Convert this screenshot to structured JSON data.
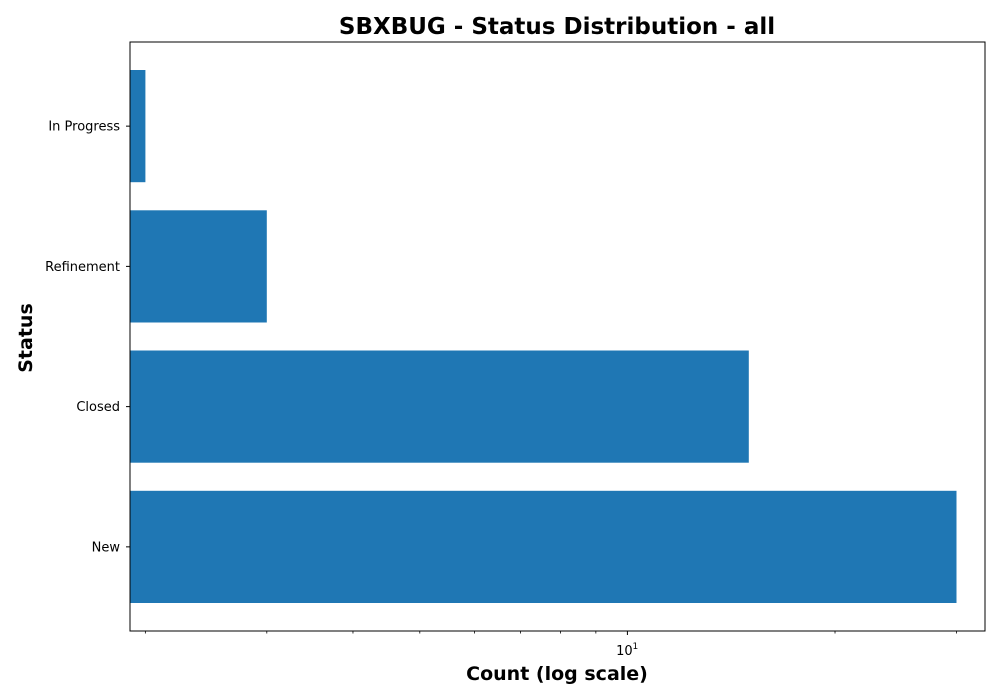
{
  "chart_data": {
    "type": "bar",
    "orientation": "horizontal",
    "title": "SBXBUG - Status Distribution - all",
    "xlabel": "Count (log scale)",
    "ylabel": "Status",
    "x_scale": "log",
    "xlim": [
      1.9,
      33
    ],
    "categories": [
      "New",
      "Closed",
      "Refinement",
      "In Progress"
    ],
    "values": [
      30,
      15,
      3,
      2
    ],
    "bar_color": "#1f77b4",
    "x_tick_labels": [
      {
        "value": 10,
        "base": "10",
        "exponent": "1"
      }
    ],
    "grid": false,
    "legend": "none"
  }
}
